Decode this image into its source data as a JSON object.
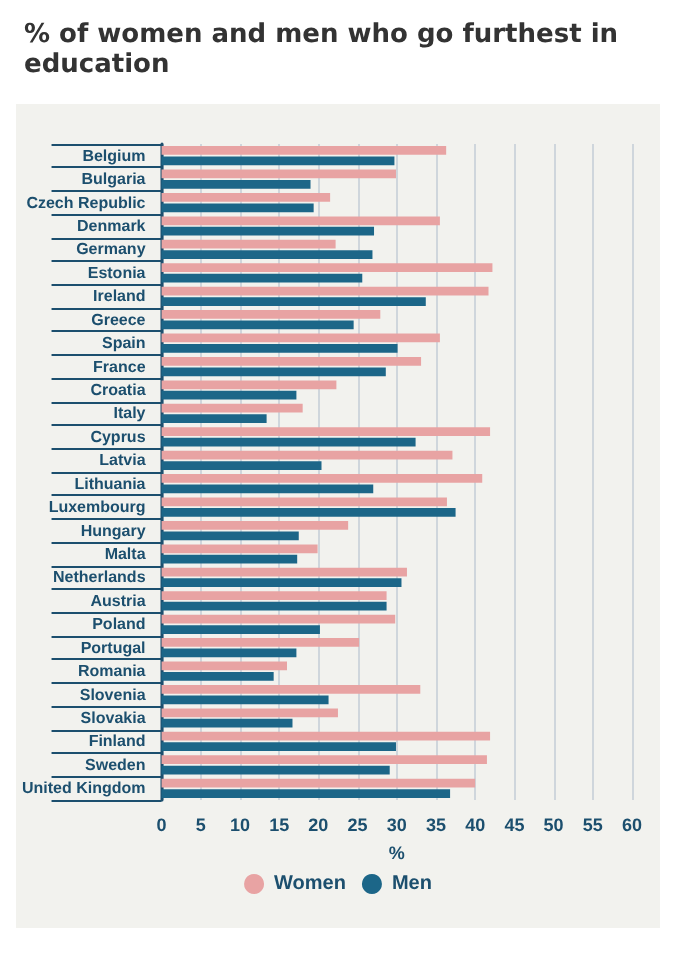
{
  "chart_data": {
    "type": "bar",
    "orientation": "horizontal",
    "title": "% of women and men who go furthest in education",
    "xlabel": "%",
    "categories": [
      "Belgium",
      "Bulgaria",
      "Czech Republic",
      "Denmark",
      "Germany",
      "Estonia",
      "Ireland",
      "Greece",
      "Spain",
      "France",
      "Croatia",
      "Italy",
      "Cyprus",
      "Latvia",
      "Lithuania",
      "Luxembourg",
      "Hungary",
      "Malta",
      "Netherlands",
      "Austria",
      "Poland",
      "Portugal",
      "Romania",
      "Slovenia",
      "Slovakia",
      "Finland",
      "Sweden",
      "United Kingdom"
    ],
    "series": [
      {
        "name": "Women",
        "color": "#e8a3a3",
        "values": [
          36.3,
          29.9,
          21.5,
          35.5,
          22.2,
          42.2,
          41.7,
          27.9,
          35.5,
          33.1,
          22.3,
          18.0,
          41.9,
          37.1,
          40.9,
          36.4,
          23.8,
          19.9,
          31.3,
          28.7,
          29.8,
          25.2,
          16.0,
          33.0,
          22.5,
          41.9,
          41.5,
          40.0
        ]
      },
      {
        "name": "Men",
        "color": "#1c6688",
        "values": [
          29.7,
          19.0,
          19.4,
          27.1,
          26.9,
          25.6,
          33.7,
          24.5,
          30.1,
          28.6,
          17.2,
          13.4,
          32.4,
          20.4,
          27.0,
          37.5,
          17.5,
          17.3,
          30.6,
          28.7,
          20.2,
          17.2,
          14.3,
          21.3,
          16.7,
          29.9,
          29.1,
          36.8
        ]
      }
    ],
    "xlim": [
      0,
      60
    ],
    "xticks": [
      0,
      5,
      10,
      15,
      20,
      25,
      30,
      35,
      40,
      45,
      50,
      55,
      60
    ],
    "grid": "x",
    "legend": "bottom"
  }
}
